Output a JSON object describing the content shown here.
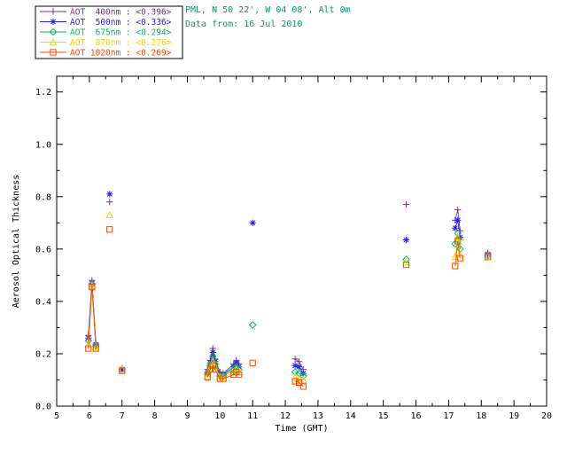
{
  "header": {
    "station_line": "PML, N 50 22', W 04 08', Alt 0m",
    "date_line": "Data from: 16 Jul 2010",
    "text_color": "#009973"
  },
  "chart_data": {
    "type": "scatter",
    "title": "",
    "xlabel": "Time (GMT)",
    "ylabel": "Aerosol Optical Thickness",
    "xlim": [
      5,
      20
    ],
    "ylim": [
      0,
      1.26
    ],
    "xticks": [
      5,
      6,
      7,
      8,
      9,
      10,
      11,
      12,
      13,
      14,
      15,
      16,
      17,
      18,
      19,
      20
    ],
    "xtick_labels": [
      "5",
      "6",
      "7",
      "8",
      "9",
      "10",
      "11",
      "12",
      "13",
      "14",
      "15",
      "16",
      "17",
      "18",
      "19",
      "20"
    ],
    "yticks": [
      0.0,
      0.2,
      0.4,
      0.6,
      0.8,
      1.0,
      1.2
    ],
    "ytick_labels": [
      "0.0",
      "0.2",
      "0.4",
      "0.6",
      "0.8",
      "1.0",
      "1.2"
    ],
    "grid": false,
    "legend_position": "top-left",
    "x": [
      5.97,
      6.08,
      6.2,
      6.62,
      7.0,
      9.62,
      9.7,
      9.78,
      9.85,
      10.0,
      10.1,
      10.42,
      10.5,
      10.58,
      11.0,
      12.3,
      12.42,
      12.55,
      15.7,
      17.2,
      17.28,
      17.35,
      18.2
    ],
    "series": [
      {
        "id": "aot-400",
        "name": "AOT 400nm",
        "mean_label": "<0.396>",
        "legend": "AOT  400nm : <0.396>",
        "color": "#7d2e8d",
        "marker": "plus",
        "values": [
          0.27,
          0.48,
          0.24,
          0.78,
          0.145,
          0.14,
          0.175,
          0.22,
          0.18,
          0.13,
          0.125,
          0.16,
          0.175,
          0.16,
          null,
          0.18,
          0.17,
          0.14,
          0.77,
          0.71,
          0.75,
          0.67,
          0.585
        ]
      },
      {
        "id": "aot-500",
        "name": "AOT 500nm",
        "mean_label": "<0.336>",
        "legend": "AOT  500nm : <0.336>",
        "color": "#2020ff",
        "marker": "star",
        "values": [
          0.26,
          0.47,
          0.235,
          0.81,
          0.14,
          0.13,
          0.165,
          0.205,
          0.17,
          0.12,
          0.12,
          0.15,
          0.165,
          0.15,
          0.7,
          0.155,
          0.15,
          0.125,
          0.635,
          0.68,
          0.71,
          0.645,
          0.58
        ]
      },
      {
        "id": "aot-675",
        "name": "AOT 675nm",
        "mean_label": "<0.294>",
        "legend": "AOT  675nm : <0.294>",
        "color": "#00bb66",
        "marker": "diamond",
        "values": [
          0.25,
          0.465,
          0.23,
          null,
          0.14,
          0.125,
          0.155,
          0.19,
          0.16,
          0.115,
          0.115,
          0.14,
          0.15,
          0.14,
          0.31,
          0.13,
          0.125,
          0.115,
          0.56,
          0.62,
          0.66,
          0.6,
          0.575
        ]
      },
      {
        "id": "aot-870",
        "name": "AOT 870nm",
        "mean_label": "<0.276>",
        "legend": "AOT  870nm : <0.276>",
        "color": "#f2d400",
        "marker": "triangle",
        "values": [
          0.235,
          0.46,
          0.225,
          0.73,
          0.14,
          0.115,
          0.145,
          0.17,
          0.15,
          0.11,
          0.11,
          0.13,
          0.14,
          0.13,
          null,
          0.11,
          0.105,
          0.1,
          0.55,
          0.57,
          0.645,
          0.58,
          0.57
        ]
      },
      {
        "id": "aot-1020",
        "name": "AOT 1020nm",
        "mean_label": "<0.269>",
        "legend": "AOT 1020nm : <0.269>",
        "color": "#ff4500",
        "marker": "square",
        "values": [
          0.22,
          0.455,
          0.22,
          0.675,
          0.135,
          0.11,
          0.14,
          0.155,
          0.14,
          0.105,
          0.105,
          0.12,
          0.13,
          0.12,
          0.165,
          0.095,
          0.09,
          0.075,
          0.54,
          0.535,
          0.63,
          0.565,
          0.57
        ]
      }
    ]
  }
}
